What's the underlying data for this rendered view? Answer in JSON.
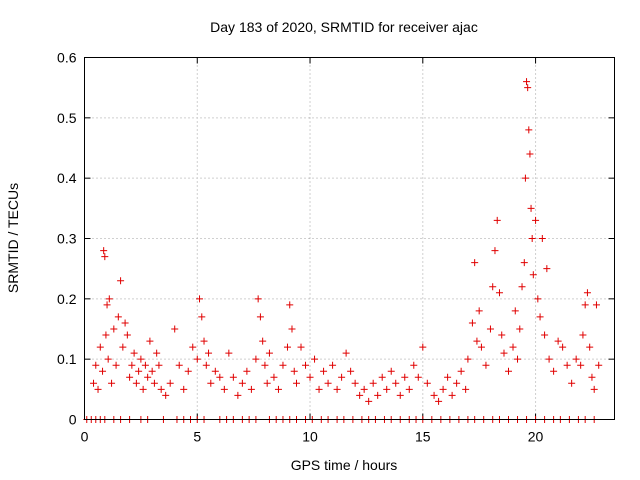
{
  "chart_data": {
    "type": "scatter",
    "title": "Day 183 of 2020, SRMTID for receiver ajac",
    "xlabel": "GPS time / hours",
    "ylabel": "SRMTID / TECUs",
    "xlim": [
      0,
      23.5
    ],
    "ylim": [
      0,
      0.6
    ],
    "xticks": [
      "0",
      "5",
      "10",
      "15",
      "20"
    ],
    "yticks": [
      "0",
      "0.1",
      "0.2",
      "0.3",
      "0.4",
      "0.5",
      "0.6"
    ],
    "grid": true,
    "marker": "+",
    "series_color": "#e00000",
    "series": [
      {
        "name": "SRMTID",
        "points": [
          [
            0.1,
            0.0
          ],
          [
            0.3,
            0.0
          ],
          [
            0.5,
            0.0
          ],
          [
            0.7,
            0.0
          ],
          [
            0.9,
            0.0
          ],
          [
            1.3,
            0.0
          ],
          [
            1.6,
            0.0
          ],
          [
            2.0,
            0.0
          ],
          [
            2.5,
            0.0
          ],
          [
            2.8,
            0.0
          ],
          [
            3.5,
            0.0
          ],
          [
            4.1,
            0.0
          ],
          [
            4.4,
            0.0
          ],
          [
            4.7,
            0.0
          ],
          [
            5.0,
            0.0
          ],
          [
            5.3,
            0.0
          ],
          [
            6.0,
            0.0
          ],
          [
            6.3,
            0.0
          ],
          [
            6.6,
            0.0
          ],
          [
            7.0,
            0.0
          ],
          [
            7.3,
            0.0
          ],
          [
            7.6,
            0.0
          ],
          [
            8.2,
            0.0
          ],
          [
            8.5,
            0.0
          ],
          [
            8.8,
            0.0
          ],
          [
            9.1,
            0.0
          ],
          [
            9.4,
            0.0
          ],
          [
            9.8,
            0.0
          ],
          [
            10.1,
            0.0
          ],
          [
            10.5,
            0.0
          ],
          [
            10.8,
            0.0
          ],
          [
            11.2,
            0.0
          ],
          [
            11.5,
            0.0
          ],
          [
            11.9,
            0.0
          ],
          [
            12.3,
            0.0
          ],
          [
            12.6,
            0.0
          ],
          [
            12.9,
            0.0
          ],
          [
            13.3,
            0.0
          ],
          [
            13.6,
            0.0
          ],
          [
            14.0,
            0.0
          ],
          [
            14.4,
            0.0
          ],
          [
            14.7,
            0.0
          ],
          [
            15.0,
            0.0
          ],
          [
            15.4,
            0.0
          ],
          [
            15.8,
            0.0
          ],
          [
            16.2,
            0.0
          ],
          [
            16.6,
            0.0
          ],
          [
            17.0,
            0.0
          ],
          [
            17.3,
            0.0
          ],
          [
            17.7,
            0.0
          ],
          [
            18.1,
            0.0
          ],
          [
            18.4,
            0.0
          ],
          [
            18.8,
            0.0
          ],
          [
            19.2,
            0.0
          ],
          [
            19.6,
            0.0
          ],
          [
            20.0,
            0.0
          ],
          [
            20.4,
            0.0
          ],
          [
            20.8,
            0.0
          ],
          [
            21.1,
            0.0
          ],
          [
            21.5,
            0.0
          ],
          [
            21.9,
            0.0
          ],
          [
            22.2,
            0.0
          ],
          [
            22.6,
            0.0
          ],
          [
            0.4,
            0.06
          ],
          [
            0.5,
            0.09
          ],
          [
            0.6,
            0.05
          ],
          [
            0.7,
            0.12
          ],
          [
            0.8,
            0.08
          ],
          [
            0.85,
            0.28
          ],
          [
            0.9,
            0.27
          ],
          [
            0.95,
            0.14
          ],
          [
            1.0,
            0.19
          ],
          [
            1.05,
            0.1
          ],
          [
            1.1,
            0.2
          ],
          [
            1.2,
            0.06
          ],
          [
            1.3,
            0.15
          ],
          [
            1.4,
            0.09
          ],
          [
            1.5,
            0.17
          ],
          [
            1.6,
            0.23
          ],
          [
            1.7,
            0.12
          ],
          [
            1.8,
            0.16
          ],
          [
            1.9,
            0.14
          ],
          [
            2.0,
            0.07
          ],
          [
            2.1,
            0.09
          ],
          [
            2.2,
            0.11
          ],
          [
            2.3,
            0.06
          ],
          [
            2.4,
            0.08
          ],
          [
            2.5,
            0.1
          ],
          [
            2.6,
            0.05
          ],
          [
            2.7,
            0.09
          ],
          [
            2.8,
            0.07
          ],
          [
            2.9,
            0.13
          ],
          [
            3.0,
            0.08
          ],
          [
            3.1,
            0.06
          ],
          [
            3.2,
            0.11
          ],
          [
            3.3,
            0.09
          ],
          [
            3.4,
            0.05
          ],
          [
            3.6,
            0.04
          ],
          [
            3.8,
            0.06
          ],
          [
            4.0,
            0.15
          ],
          [
            4.2,
            0.09
          ],
          [
            4.4,
            0.05
          ],
          [
            4.6,
            0.08
          ],
          [
            4.8,
            0.12
          ],
          [
            5.0,
            0.1
          ],
          [
            5.1,
            0.2
          ],
          [
            5.2,
            0.17
          ],
          [
            5.3,
            0.13
          ],
          [
            5.4,
            0.09
          ],
          [
            5.5,
            0.11
          ],
          [
            5.6,
            0.06
          ],
          [
            5.8,
            0.08
          ],
          [
            6.0,
            0.07
          ],
          [
            6.2,
            0.05
          ],
          [
            6.4,
            0.11
          ],
          [
            6.6,
            0.07
          ],
          [
            6.8,
            0.04
          ],
          [
            7.0,
            0.06
          ],
          [
            7.2,
            0.08
          ],
          [
            7.4,
            0.05
          ],
          [
            7.6,
            0.1
          ],
          [
            7.7,
            0.2
          ],
          [
            7.8,
            0.17
          ],
          [
            7.9,
            0.13
          ],
          [
            8.0,
            0.09
          ],
          [
            8.1,
            0.06
          ],
          [
            8.2,
            0.11
          ],
          [
            8.4,
            0.07
          ],
          [
            8.6,
            0.05
          ],
          [
            8.8,
            0.09
          ],
          [
            9.0,
            0.12
          ],
          [
            9.1,
            0.19
          ],
          [
            9.2,
            0.15
          ],
          [
            9.3,
            0.08
          ],
          [
            9.4,
            0.06
          ],
          [
            9.6,
            0.12
          ],
          [
            9.8,
            0.09
          ],
          [
            10.0,
            0.07
          ],
          [
            10.2,
            0.1
          ],
          [
            10.4,
            0.05
          ],
          [
            10.6,
            0.08
          ],
          [
            10.8,
            0.06
          ],
          [
            11.0,
            0.09
          ],
          [
            11.2,
            0.05
          ],
          [
            11.4,
            0.07
          ],
          [
            11.6,
            0.11
          ],
          [
            11.8,
            0.08
          ],
          [
            12.0,
            0.06
          ],
          [
            12.2,
            0.04
          ],
          [
            12.4,
            0.05
          ],
          [
            12.6,
            0.03
          ],
          [
            12.8,
            0.06
          ],
          [
            13.0,
            0.04
          ],
          [
            13.2,
            0.07
          ],
          [
            13.4,
            0.05
          ],
          [
            13.6,
            0.08
          ],
          [
            13.8,
            0.06
          ],
          [
            14.0,
            0.04
          ],
          [
            14.2,
            0.07
          ],
          [
            14.4,
            0.05
          ],
          [
            14.6,
            0.09
          ],
          [
            14.8,
            0.07
          ],
          [
            15.0,
            0.12
          ],
          [
            15.2,
            0.06
          ],
          [
            15.5,
            0.04
          ],
          [
            15.7,
            0.03
          ],
          [
            15.9,
            0.05
          ],
          [
            16.1,
            0.07
          ],
          [
            16.3,
            0.04
          ],
          [
            16.5,
            0.06
          ],
          [
            16.7,
            0.08
          ],
          [
            16.9,
            0.05
          ],
          [
            17.0,
            0.1
          ],
          [
            17.2,
            0.16
          ],
          [
            17.3,
            0.26
          ],
          [
            17.4,
            0.13
          ],
          [
            17.5,
            0.18
          ],
          [
            17.6,
            0.12
          ],
          [
            17.8,
            0.09
          ],
          [
            18.0,
            0.15
          ],
          [
            18.1,
            0.22
          ],
          [
            18.2,
            0.28
          ],
          [
            18.3,
            0.33
          ],
          [
            18.4,
            0.21
          ],
          [
            18.5,
            0.14
          ],
          [
            18.6,
            0.11
          ],
          [
            18.8,
            0.08
          ],
          [
            19.0,
            0.12
          ],
          [
            19.1,
            0.18
          ],
          [
            19.2,
            0.1
          ],
          [
            19.3,
            0.15
          ],
          [
            19.4,
            0.22
          ],
          [
            19.5,
            0.26
          ],
          [
            19.55,
            0.4
          ],
          [
            19.6,
            0.56
          ],
          [
            19.65,
            0.55
          ],
          [
            19.7,
            0.48
          ],
          [
            19.75,
            0.44
          ],
          [
            19.8,
            0.35
          ],
          [
            19.85,
            0.3
          ],
          [
            19.9,
            0.24
          ],
          [
            20.0,
            0.33
          ],
          [
            20.1,
            0.2
          ],
          [
            20.2,
            0.17
          ],
          [
            20.3,
            0.3
          ],
          [
            20.4,
            0.14
          ],
          [
            20.5,
            0.25
          ],
          [
            20.6,
            0.1
          ],
          [
            20.8,
            0.08
          ],
          [
            21.0,
            0.13
          ],
          [
            21.2,
            0.12
          ],
          [
            21.4,
            0.09
          ],
          [
            21.6,
            0.06
          ],
          [
            21.8,
            0.1
          ],
          [
            22.0,
            0.09
          ],
          [
            22.1,
            0.14
          ],
          [
            22.2,
            0.19
          ],
          [
            22.3,
            0.21
          ],
          [
            22.4,
            0.12
          ],
          [
            22.5,
            0.07
          ],
          [
            22.6,
            0.05
          ],
          [
            22.7,
            0.19
          ],
          [
            22.8,
            0.09
          ]
        ]
      }
    ]
  }
}
